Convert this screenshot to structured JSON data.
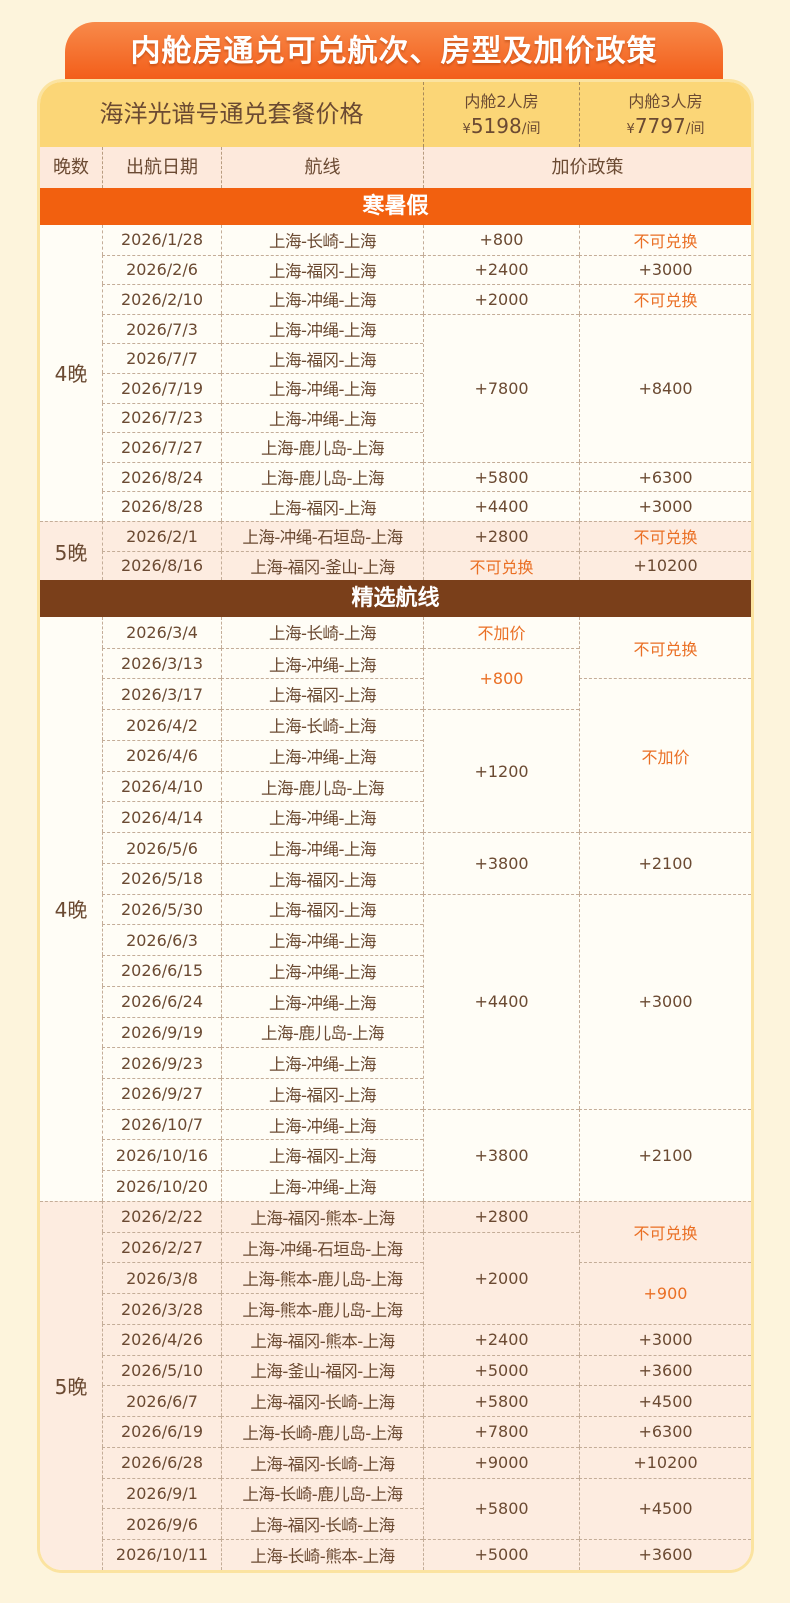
{
  "title": "内舱房通兑可兑航次、房型及加价政策",
  "header": {
    "package_label": "海洋光谱号通兑套餐价格",
    "rooms": [
      {
        "name": "内舱2人房",
        "currency": "¥",
        "price": "5198",
        "unit": "/间"
      },
      {
        "name": "内舱3人房",
        "currency": "¥",
        "price": "7797",
        "unit": "/间"
      }
    ],
    "columns": [
      "晚数",
      "出航日期",
      "航线",
      "加价政策"
    ]
  },
  "colors": {
    "orange_section": "#f2600f",
    "brown_section": "#7a3f1a",
    "highlight_text": "#ea6f24"
  },
  "sections": [
    {
      "title": "寒暑假",
      "color": "#f2600f",
      "rows": [
        {
          "date": "2026/1/28",
          "route": "上海-长崎-上海"
        },
        {
          "date": "2026/2/6",
          "route": "上海-福冈-上海"
        },
        {
          "date": "2026/2/10",
          "route": "上海-冲绳-上海"
        },
        {
          "date": "2026/7/3",
          "route": "上海-冲绳-上海"
        },
        {
          "date": "2026/7/7",
          "route": "上海-福冈-上海"
        },
        {
          "date": "2026/7/19",
          "route": "上海-冲绳-上海"
        },
        {
          "date": "2026/7/23",
          "route": "上海-冲绳-上海"
        },
        {
          "date": "2026/7/27",
          "route": "上海-鹿儿岛-上海"
        },
        {
          "date": "2026/8/24",
          "route": "上海-鹿儿岛-上海"
        },
        {
          "date": "2026/8/28",
          "route": "上海-福冈-上海"
        },
        {
          "date": "2026/2/1",
          "route": "上海-冲绳-石垣岛-上海"
        },
        {
          "date": "2026/8/16",
          "route": "上海-福冈-釜山-上海"
        }
      ],
      "nights": [
        {
          "label": "4晚",
          "span": 10
        },
        {
          "label": "5晚",
          "span": 2
        }
      ],
      "price2": [
        {
          "v": "+800",
          "span": 1
        },
        {
          "v": "+2400",
          "span": 1
        },
        {
          "v": "+2000",
          "span": 1
        },
        {
          "v": "+7800",
          "span": 5
        },
        {
          "v": "+5800",
          "span": 1
        },
        {
          "v": "+4400",
          "span": 1
        },
        {
          "v": "+2800",
          "span": 1
        },
        {
          "v": "不可兑换",
          "span": 1,
          "hl": true
        }
      ],
      "price3": [
        {
          "v": "不可兑换",
          "span": 1,
          "hl": true
        },
        {
          "v": "+3000",
          "span": 1
        },
        {
          "v": "不可兑换",
          "span": 1,
          "hl": true
        },
        {
          "v": "+8400",
          "span": 5
        },
        {
          "v": "+6300",
          "span": 1
        },
        {
          "v": "+3000",
          "span": 1
        },
        {
          "v": "不可兑换",
          "span": 1,
          "hl": true
        },
        {
          "v": "+10200",
          "span": 1
        }
      ]
    },
    {
      "title": "精选航线",
      "color": "#7a3f1a",
      "rows": [
        {
          "date": "2026/3/4",
          "route": "上海-长崎-上海"
        },
        {
          "date": "2026/3/13",
          "route": "上海-冲绳-上海"
        },
        {
          "date": "2026/3/17",
          "route": "上海-福冈-上海"
        },
        {
          "date": "2026/4/2",
          "route": "上海-长崎-上海"
        },
        {
          "date": "2026/4/6",
          "route": "上海-冲绳-上海"
        },
        {
          "date": "2026/4/10",
          "route": "上海-鹿儿岛-上海"
        },
        {
          "date": "2026/4/14",
          "route": "上海-冲绳-上海"
        },
        {
          "date": "2026/5/6",
          "route": "上海-冲绳-上海"
        },
        {
          "date": "2026/5/18",
          "route": "上海-福冈-上海"
        },
        {
          "date": "2026/5/30",
          "route": "上海-福冈-上海"
        },
        {
          "date": "2026/6/3",
          "route": "上海-冲绳-上海"
        },
        {
          "date": "2026/6/15",
          "route": "上海-冲绳-上海"
        },
        {
          "date": "2026/6/24",
          "route": "上海-冲绳-上海"
        },
        {
          "date": "2026/9/19",
          "route": "上海-鹿儿岛-上海"
        },
        {
          "date": "2026/9/23",
          "route": "上海-冲绳-上海"
        },
        {
          "date": "2026/9/27",
          "route": "上海-福冈-上海"
        },
        {
          "date": "2026/10/7",
          "route": "上海-冲绳-上海"
        },
        {
          "date": "2026/10/16",
          "route": "上海-福冈-上海"
        },
        {
          "date": "2026/10/20",
          "route": "上海-冲绳-上海"
        },
        {
          "date": "2026/2/22",
          "route": "上海-福冈-熊本-上海"
        },
        {
          "date": "2026/2/27",
          "route": "上海-冲绳-石垣岛-上海"
        },
        {
          "date": "2026/3/8",
          "route": "上海-熊本-鹿儿岛-上海"
        },
        {
          "date": "2026/3/28",
          "route": "上海-熊本-鹿儿岛-上海"
        },
        {
          "date": "2026/4/26",
          "route": "上海-福冈-熊本-上海"
        },
        {
          "date": "2026/5/10",
          "route": "上海-釜山-福冈-上海"
        },
        {
          "date": "2026/6/7",
          "route": "上海-福冈-长崎-上海"
        },
        {
          "date": "2026/6/19",
          "route": "上海-长崎-鹿儿岛-上海"
        },
        {
          "date": "2026/6/28",
          "route": "上海-福冈-长崎-上海"
        },
        {
          "date": "2026/9/1",
          "route": "上海-长崎-鹿儿岛-上海"
        },
        {
          "date": "2026/9/6",
          "route": "上海-福冈-长崎-上海"
        },
        {
          "date": "2026/10/11",
          "route": "上海-长崎-熊本-上海"
        }
      ],
      "nights": [
        {
          "label": "4晚",
          "span": 19
        },
        {
          "label": "5晚",
          "span": 12
        }
      ],
      "price2": [
        {
          "v": "不加价",
          "span": 1,
          "hl": true
        },
        {
          "v": "+800",
          "span": 2,
          "hl": true
        },
        {
          "v": "+1200",
          "span": 4
        },
        {
          "v": "+3800",
          "span": 2
        },
        {
          "v": "+4400",
          "span": 7
        },
        {
          "v": "+3800",
          "span": 3
        },
        {
          "v": "+2800",
          "span": 1
        },
        {
          "v": "+2000",
          "span": 3
        },
        {
          "v": "+2400",
          "span": 1
        },
        {
          "v": "+5000",
          "span": 1
        },
        {
          "v": "+5800",
          "span": 1
        },
        {
          "v": "+7800",
          "span": 1
        },
        {
          "v": "+9000",
          "span": 1
        },
        {
          "v": "+5800",
          "span": 2
        },
        {
          "v": "+5000",
          "span": 1
        }
      ],
      "price3": [
        {
          "v": "不可兑换",
          "span": 2,
          "hl": true
        },
        {
          "v": "不加价",
          "span": 5,
          "hl": true
        },
        {
          "v": "+2100",
          "span": 2
        },
        {
          "v": "+3000",
          "span": 7
        },
        {
          "v": "+2100",
          "span": 3
        },
        {
          "v": "不可兑换",
          "span": 2,
          "hl": true
        },
        {
          "v": "+900",
          "span": 2,
          "hl": true
        },
        {
          "v": "+3000",
          "span": 1
        },
        {
          "v": "+3600",
          "span": 1
        },
        {
          "v": "+4500",
          "span": 1
        },
        {
          "v": "+6300",
          "span": 1
        },
        {
          "v": "+10200",
          "span": 1
        },
        {
          "v": "+4500",
          "span": 2
        },
        {
          "v": "+3600",
          "span": 1
        }
      ]
    }
  ]
}
